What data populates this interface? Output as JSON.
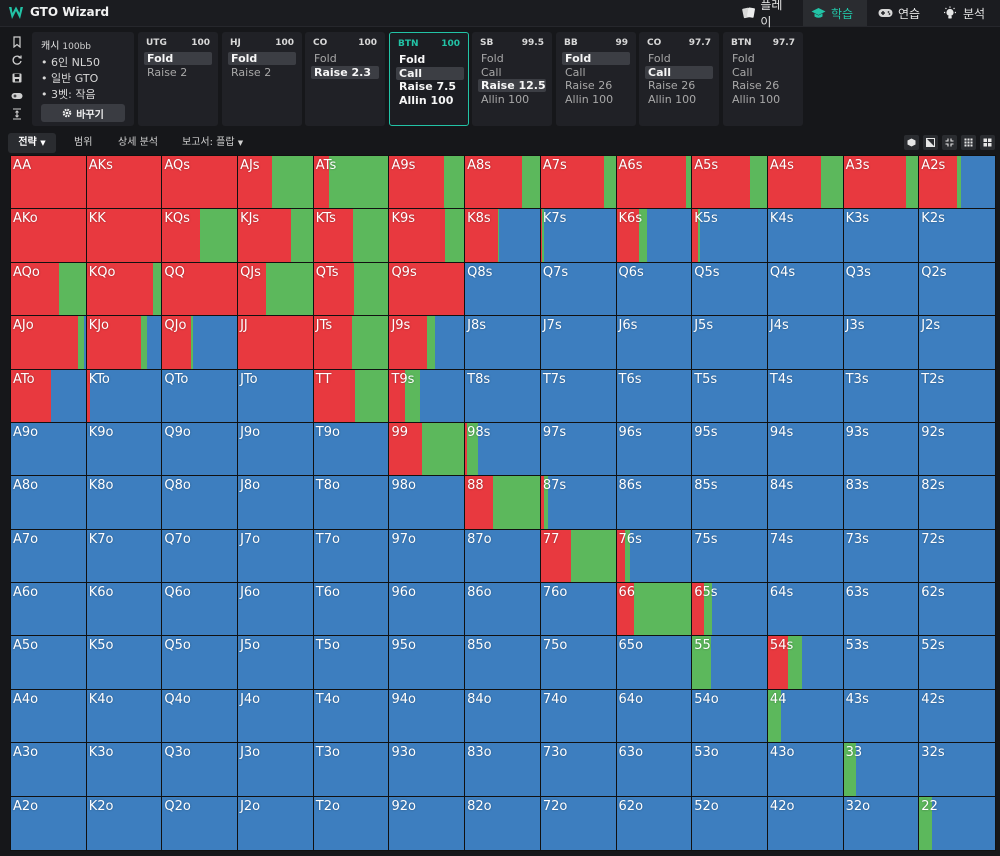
{
  "app": {
    "title": "GTO Wizard"
  },
  "nav": {
    "tabs": [
      {
        "id": "play",
        "label": "플레이",
        "icon": "cards-icon",
        "active": false
      },
      {
        "id": "study",
        "label": "학습",
        "icon": "graduation-cap-icon",
        "active": true
      },
      {
        "id": "practice",
        "label": "연습",
        "icon": "gamepad-icon",
        "active": false
      },
      {
        "id": "analyze",
        "label": "분석",
        "icon": "lightbulb-icon",
        "active": false
      }
    ]
  },
  "rail": {
    "icons": [
      "bookmark-icon",
      "refresh-icon",
      "save-icon",
      "gamepad-icon",
      "align-vertical-icon"
    ]
  },
  "game": {
    "type": "캐시",
    "bb": "100bb",
    "lines": [
      "6인 NL50",
      "일반 GTO",
      "3벳: 작음"
    ],
    "change_label": "바꾸기"
  },
  "positions": [
    {
      "name": "UTG",
      "stack": "100",
      "actions": [
        "Fold",
        "Raise 2"
      ],
      "selected": 0,
      "current": false
    },
    {
      "name": "HJ",
      "stack": "100",
      "actions": [
        "Fold",
        "Raise 2"
      ],
      "selected": 0,
      "current": false
    },
    {
      "name": "CO",
      "stack": "100",
      "actions": [
        "Fold",
        "Raise 2.3"
      ],
      "selected": 1,
      "current": false
    },
    {
      "name": "BTN",
      "stack": "100",
      "actions": [
        "Fold",
        "Call",
        "Raise 7.5",
        "Allin 100"
      ],
      "selected": 1,
      "current": true
    },
    {
      "name": "SB",
      "stack": "99.5",
      "actions": [
        "Fold",
        "Call",
        "Raise 12.5",
        "Allin 100"
      ],
      "selected": 2,
      "current": false
    },
    {
      "name": "BB",
      "stack": "99",
      "actions": [
        "Fold",
        "Call",
        "Raise 26",
        "Allin 100"
      ],
      "selected": 0,
      "current": false
    },
    {
      "name": "CO",
      "stack": "97.7",
      "actions": [
        "Fold",
        "Call",
        "Raise 26",
        "Allin 100"
      ],
      "selected": 1,
      "current": false
    },
    {
      "name": "BTN",
      "stack": "97.7",
      "actions": [
        "Fold",
        "Call",
        "Raise 26",
        "Allin 100"
      ],
      "selected": -1,
      "current": false
    }
  ],
  "subbar": {
    "strategy_label": "전략",
    "range_label": "범위",
    "detail_label": "상세 분석",
    "report_label": "보고서: 플랍",
    "view_icons": [
      "cube-icon",
      "contrast-icon",
      "compress-icon",
      "grid-small-icon",
      "grid-large-icon"
    ]
  },
  "colors": {
    "raise": "#e8393f",
    "call": "#5cb85c",
    "fold": "#3d7ebf",
    "accent": "#22c3a6"
  },
  "hands": [
    [
      "AA",
      "AKs",
      "AQs",
      "AJs",
      "ATs",
      "A9s",
      "A8s",
      "A7s",
      "A6s",
      "A5s",
      "A4s",
      "A3s",
      "A2s"
    ],
    [
      "AKo",
      "KK",
      "KQs",
      "KJs",
      "KTs",
      "K9s",
      "K8s",
      "K7s",
      "K6s",
      "K5s",
      "K4s",
      "K3s",
      "K2s"
    ],
    [
      "AQo",
      "KQo",
      "QQ",
      "QJs",
      "QTs",
      "Q9s",
      "Q8s",
      "Q7s",
      "Q6s",
      "Q5s",
      "Q4s",
      "Q3s",
      "Q2s"
    ],
    [
      "AJo",
      "KJo",
      "QJo",
      "JJ",
      "JTs",
      "J9s",
      "J8s",
      "J7s",
      "J6s",
      "J5s",
      "J4s",
      "J3s",
      "J2s"
    ],
    [
      "ATo",
      "KTo",
      "QTo",
      "JTo",
      "TT",
      "T9s",
      "T8s",
      "T7s",
      "T6s",
      "T5s",
      "T4s",
      "T3s",
      "T2s"
    ],
    [
      "A9o",
      "K9o",
      "Q9o",
      "J9o",
      "T9o",
      "99",
      "98s",
      "97s",
      "96s",
      "95s",
      "94s",
      "93s",
      "92s"
    ],
    [
      "A8o",
      "K8o",
      "Q8o",
      "J8o",
      "T8o",
      "98o",
      "88",
      "87s",
      "86s",
      "85s",
      "84s",
      "83s",
      "82s"
    ],
    [
      "A7o",
      "K7o",
      "Q7o",
      "J7o",
      "T7o",
      "97o",
      "87o",
      "77",
      "76s",
      "75s",
      "74s",
      "73s",
      "72s"
    ],
    [
      "A6o",
      "K6o",
      "Q6o",
      "J6o",
      "T6o",
      "96o",
      "86o",
      "76o",
      "66",
      "65s",
      "64s",
      "63s",
      "62s"
    ],
    [
      "A5o",
      "K5o",
      "Q5o",
      "J5o",
      "T5o",
      "95o",
      "85o",
      "75o",
      "65o",
      "55",
      "54s",
      "53s",
      "52s"
    ],
    [
      "A4o",
      "K4o",
      "Q4o",
      "J4o",
      "T4o",
      "94o",
      "84o",
      "74o",
      "64o",
      "54o",
      "44",
      "43s",
      "42s"
    ],
    [
      "A3o",
      "K3o",
      "Q3o",
      "J3o",
      "T3o",
      "93o",
      "83o",
      "73o",
      "63o",
      "53o",
      "43o",
      "33",
      "32s"
    ],
    [
      "A2o",
      "K2o",
      "Q2o",
      "J2o",
      "T2o",
      "92o",
      "82o",
      "72o",
      "62o",
      "52o",
      "42o",
      "32o",
      "22"
    ]
  ],
  "strategy": {
    "AA": [
      1,
      0
    ],
    "AKs": [
      1,
      0
    ],
    "AQs": [
      1,
      0
    ],
    "AJs": [
      0.45,
      0.55
    ],
    "ATs": [
      0.2,
      0.8
    ],
    "A9s": [
      0.72,
      0.28
    ],
    "A8s": [
      0.75,
      0.25
    ],
    "A7s": [
      0.83,
      0.17
    ],
    "A6s": [
      0.92,
      0.08
    ],
    "A5s": [
      0.77,
      0.23
    ],
    "A4s": [
      0.7,
      0.3
    ],
    "A3s": [
      0.83,
      0.17
    ],
    "A2s": [
      0.5,
      0.05
    ],
    "AKo": [
      1,
      0
    ],
    "KK": [
      1,
      0
    ],
    "KQs": [
      0.5,
      0.5
    ],
    "KJs": [
      0.7,
      0.3
    ],
    "KTs": [
      0.52,
      0.48
    ],
    "K9s": [
      0.73,
      0.27
    ],
    "K8s": [
      0.43,
      0.02
    ],
    "K7s": [
      0.02,
      0.02
    ],
    "K6s": [
      0.3,
      0.1
    ],
    "K5s": [
      0.08,
      0.02
    ],
    "AQo": [
      0.63,
      0.37
    ],
    "KQo": [
      0.88,
      0.12
    ],
    "QQ": [
      1,
      0
    ],
    "QJs": [
      0.37,
      0.63
    ],
    "QTs": [
      0.53,
      0.47
    ],
    "Q9s": [
      1,
      0
    ],
    "AJo": [
      0.88,
      0.08
    ],
    "KJo": [
      0.72,
      0.08
    ],
    "QJo": [
      0.38,
      0.02
    ],
    "JJ": [
      1,
      0
    ],
    "JTs": [
      0.5,
      0.5
    ],
    "J9s": [
      0.5,
      0.1
    ],
    "ATo": [
      0.53,
      0
    ],
    "KTo": [
      0.05,
      0
    ],
    "TT": [
      0.55,
      0.45
    ],
    "T9s": [
      0.2,
      0.2
    ],
    "99": [
      0.43,
      0.57
    ],
    "98s": [
      0.02,
      0.15
    ],
    "88": [
      0.37,
      0.63
    ],
    "87s": [
      0.04,
      0.06
    ],
    "77": [
      0.4,
      0.6
    ],
    "76s": [
      0.11,
      0.07
    ],
    "66": [
      0.23,
      0.77
    ],
    "65s": [
      0.16,
      0.1
    ],
    "55": [
      0,
      0.25
    ],
    "54s": [
      0.27,
      0.18
    ],
    "44": [
      0,
      0.17
    ],
    "33": [
      0,
      0.17
    ],
    "22": [
      0,
      0.17
    ]
  }
}
